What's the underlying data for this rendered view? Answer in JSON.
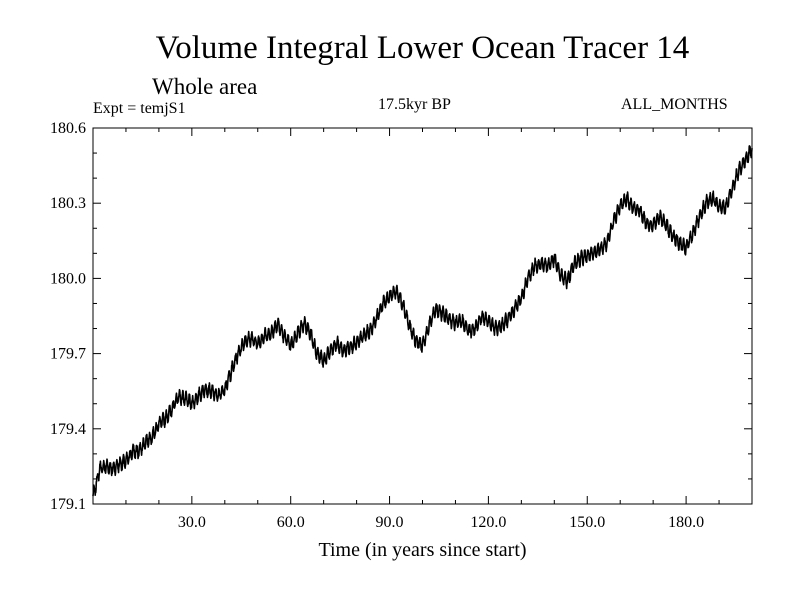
{
  "chart_data": {
    "type": "line",
    "title": "Volume Integral Lower Ocean Tracer 14",
    "subtitle": "Whole area",
    "experiment_label": "Expt = temjS1",
    "period_label": "17.5kyr BP",
    "months_label": "ALL_MONTHS",
    "xlabel": "Time (in years since start)",
    "ylabel": "",
    "xlim": [
      0,
      200
    ],
    "ylim": [
      179.1,
      180.6
    ],
    "x_ticks": [
      30,
      60,
      90,
      120,
      150,
      180
    ],
    "x_tick_labels": [
      "30.0",
      "60.0",
      "90.0",
      "120.0",
      "150.0",
      "180.0"
    ],
    "y_ticks": [
      179.1,
      179.4,
      179.7,
      180.0,
      180.3,
      180.6
    ],
    "y_tick_labels": [
      "179.1",
      "179.4",
      "179.7",
      "180.0",
      "180.3",
      "180.6"
    ],
    "line_color": "#000000",
    "series": [
      {
        "name": "temjS1",
        "x": [
          0,
          1,
          2,
          4,
          6,
          8,
          10,
          12,
          14,
          16,
          18,
          20,
          22,
          24,
          26,
          28,
          30,
          32,
          34,
          36,
          38,
          40,
          42,
          44,
          46,
          48,
          50,
          52,
          54,
          56,
          58,
          60,
          62,
          64,
          66,
          68,
          70,
          72,
          74,
          76,
          78,
          80,
          82,
          84,
          86,
          88,
          90,
          92,
          94,
          96,
          98,
          100,
          102,
          104,
          106,
          108,
          110,
          112,
          114,
          116,
          118,
          120,
          122,
          124,
          126,
          128,
          130,
          132,
          134,
          136,
          138,
          140,
          142,
          144,
          146,
          148,
          150,
          152,
          154,
          156,
          158,
          160,
          162,
          164,
          166,
          168,
          170,
          172,
          174,
          176,
          178,
          180,
          182,
          184,
          186,
          188,
          190,
          192,
          194,
          196,
          198,
          200
        ],
        "values": [
          179.13,
          179.18,
          179.24,
          179.25,
          179.24,
          179.26,
          179.27,
          179.31,
          179.31,
          179.35,
          179.37,
          179.42,
          179.44,
          179.48,
          179.53,
          179.52,
          179.5,
          179.53,
          179.56,
          179.55,
          179.53,
          179.56,
          179.63,
          179.7,
          179.75,
          179.76,
          179.74,
          179.77,
          179.78,
          179.82,
          179.77,
          179.73,
          179.78,
          179.82,
          179.78,
          179.7,
          179.67,
          179.71,
          179.74,
          179.71,
          179.73,
          179.74,
          179.77,
          179.79,
          179.84,
          179.9,
          179.93,
          179.95,
          179.9,
          179.81,
          179.75,
          179.73,
          179.81,
          179.88,
          179.86,
          179.84,
          179.82,
          179.83,
          179.79,
          179.8,
          179.85,
          179.83,
          179.8,
          179.81,
          179.84,
          179.88,
          179.92,
          180.0,
          180.05,
          180.06,
          180.05,
          180.08,
          180.01,
          179.99,
          180.06,
          180.08,
          180.09,
          180.1,
          180.12,
          180.14,
          180.23,
          180.29,
          180.32,
          180.28,
          180.27,
          180.22,
          180.21,
          180.25,
          180.21,
          180.17,
          180.14,
          180.12,
          180.18,
          180.24,
          180.3,
          180.32,
          180.29,
          180.28,
          180.36,
          180.43,
          180.47,
          180.52
        ]
      }
    ]
  }
}
